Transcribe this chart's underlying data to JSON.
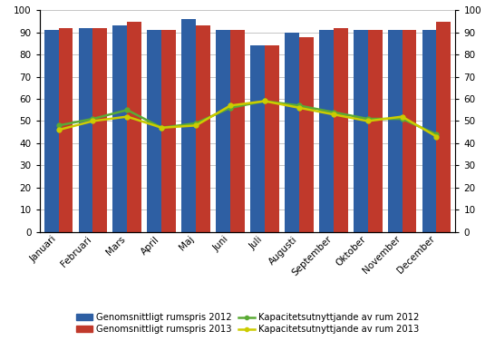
{
  "months": [
    "Januari",
    "Februari",
    "Mars",
    "April",
    "Maj",
    "Juni",
    "Juli",
    "Augusti",
    "September",
    "Oktober",
    "November",
    "December"
  ],
  "bar_2012": [
    91,
    92,
    93,
    91,
    96,
    91,
    84,
    90,
    91,
    91,
    91,
    91
  ],
  "bar_2013": [
    92,
    92,
    95,
    91,
    93,
    91,
    84,
    88,
    92,
    91,
    91,
    95
  ],
  "line_2012": [
    48,
    51,
    55,
    47,
    49,
    56,
    59,
    57,
    54,
    51,
    51,
    44
  ],
  "line_2013": [
    46,
    50,
    52,
    47,
    48,
    57,
    59,
    56,
    53,
    50,
    52,
    43
  ],
  "bar_color_2012": "#2E5FA3",
  "bar_color_2013": "#C0392B",
  "line_color_2012": "#5AAA35",
  "line_color_2013": "#CCCC00",
  "ylim": [
    0,
    100
  ],
  "yticks": [
    0,
    10,
    20,
    30,
    40,
    50,
    60,
    70,
    80,
    90,
    100
  ],
  "legend_labels": [
    "Genomsnittligt rumspris 2012",
    "Genomsnittligt rumspris 2013",
    "Kapacitetsutnyttjande av rum 2012",
    "Kapacitetsutnyttjande av rum 2013"
  ],
  "background_color": "#FFFFFF",
  "grid_color": "#BBBBBB",
  "tick_fontsize": 7.5,
  "legend_fontsize": 7.2,
  "bar_width": 0.42
}
